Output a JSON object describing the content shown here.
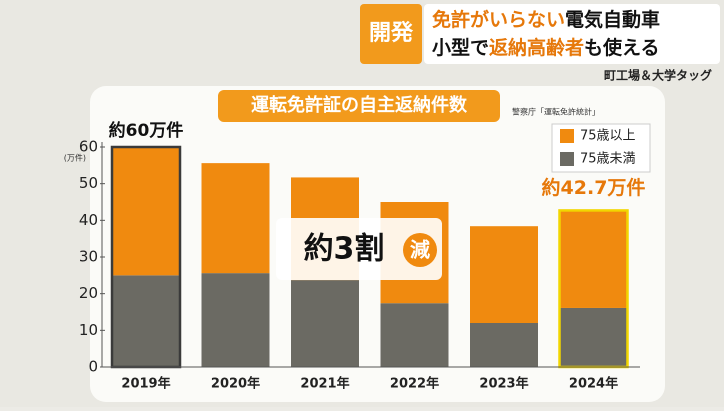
{
  "header": {
    "tag": "開発",
    "line1": [
      "免許がいらない",
      "電気自動車"
    ],
    "line2": [
      "小型で",
      "返納高齢者",
      "も使える"
    ],
    "sub": "町工場＆大学タッグ"
  },
  "chart_data": {
    "type": "stacked_bar",
    "title": "運転免許証の自主返納件数",
    "source": "警察庁「運転免許統計」",
    "y_unit": "(万件)",
    "categories": [
      "2019年",
      "2020年",
      "2021年",
      "2022年",
      "2023年",
      "2024年"
    ],
    "series": [
      {
        "name": "75歳以上",
        "color": "#f08a0f",
        "values": [
          35,
          30,
          28,
          27.6,
          26.4,
          26.6
        ]
      },
      {
        "name": "75歳未満",
        "color": "#6b6a63",
        "values": [
          25,
          25.6,
          23.7,
          17.4,
          12,
          16.1
        ]
      }
    ],
    "bar_outlines": [
      "#3a3a3a",
      null,
      null,
      null,
      null,
      "#f2d600"
    ],
    "ylim": [
      0,
      60
    ],
    "yticks": [
      0,
      10,
      20,
      30,
      40,
      50,
      60
    ],
    "annotations": {
      "first": "約60万件",
      "last": "約42.7万件",
      "drop": "約3割",
      "drop_mark": "減"
    }
  }
}
